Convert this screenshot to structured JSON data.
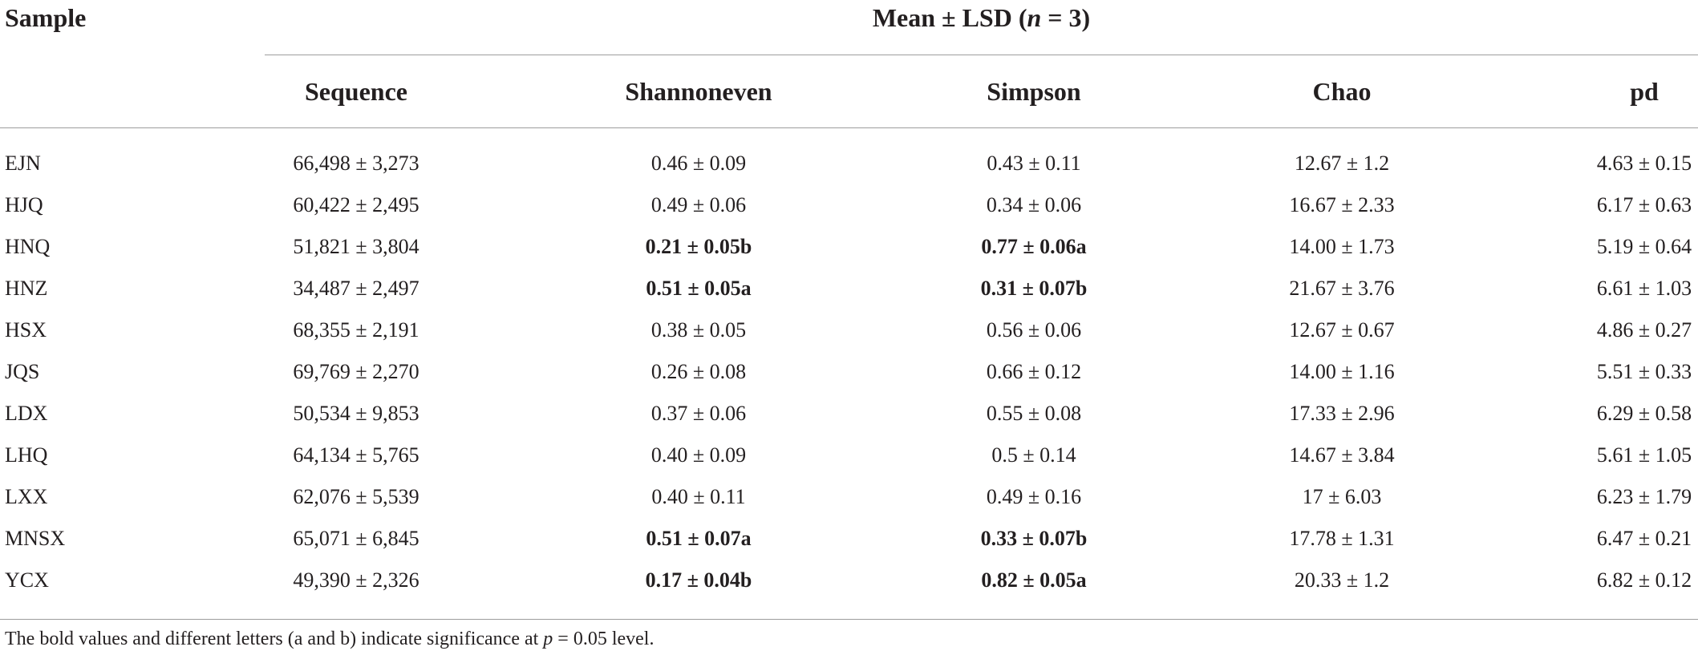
{
  "table": {
    "stub_header": "Sample",
    "group_header": {
      "prefix": "Mean ± LSD (",
      "n_symbol": "n",
      "suffix": " = 3)"
    },
    "columns": [
      "Sequence",
      "Shannoneven",
      "Simpson",
      "Chao",
      "pd"
    ],
    "rows": [
      {
        "sample": "EJN",
        "sequence": "66,498 ± 3,273",
        "shannoneven": "0.46 ± 0.09",
        "simpson": "0.43 ± 0.11",
        "chao": "12.67 ± 1.2",
        "pd": "4.63 ± 0.15",
        "bold_shannoneven": false,
        "bold_simpson": false
      },
      {
        "sample": "HJQ",
        "sequence": "60,422 ± 2,495",
        "shannoneven": "0.49 ± 0.06",
        "simpson": "0.34 ± 0.06",
        "chao": "16.67 ± 2.33",
        "pd": "6.17 ± 0.63",
        "bold_shannoneven": false,
        "bold_simpson": false
      },
      {
        "sample": "HNQ",
        "sequence": "51,821 ± 3,804",
        "shannoneven": "0.21 ± 0.05b",
        "simpson": "0.77 ± 0.06a",
        "chao": "14.00 ± 1.73",
        "pd": "5.19 ± 0.64",
        "bold_shannoneven": true,
        "bold_simpson": true
      },
      {
        "sample": "HNZ",
        "sequence": "34,487 ± 2,497",
        "shannoneven": "0.51 ± 0.05a",
        "simpson": "0.31 ± 0.07b",
        "chao": "21.67 ± 3.76",
        "pd": "6.61 ± 1.03",
        "bold_shannoneven": true,
        "bold_simpson": true
      },
      {
        "sample": "HSX",
        "sequence": "68,355 ± 2,191",
        "shannoneven": "0.38 ± 0.05",
        "simpson": "0.56 ± 0.06",
        "chao": "12.67 ± 0.67",
        "pd": "4.86 ± 0.27",
        "bold_shannoneven": false,
        "bold_simpson": false
      },
      {
        "sample": "JQS",
        "sequence": "69,769 ± 2,270",
        "shannoneven": "0.26 ± 0.08",
        "simpson": "0.66 ± 0.12",
        "chao": "14.00 ± 1.16",
        "pd": "5.51 ± 0.33",
        "bold_shannoneven": false,
        "bold_simpson": false
      },
      {
        "sample": "LDX",
        "sequence": "50,534 ± 9,853",
        "shannoneven": "0.37 ± 0.06",
        "simpson": "0.55 ± 0.08",
        "chao": "17.33 ± 2.96",
        "pd": "6.29 ± 0.58",
        "bold_shannoneven": false,
        "bold_simpson": false
      },
      {
        "sample": "LHQ",
        "sequence": "64,134 ± 5,765",
        "shannoneven": "0.40 ± 0.09",
        "simpson": "0.5 ± 0.14",
        "chao": "14.67 ± 3.84",
        "pd": "5.61 ± 1.05",
        "bold_shannoneven": false,
        "bold_simpson": false
      },
      {
        "sample": "LXX",
        "sequence": "62,076 ± 5,539",
        "shannoneven": "0.40 ± 0.11",
        "simpson": "0.49 ± 0.16",
        "chao": "17 ± 6.03",
        "pd": "6.23 ± 1.79",
        "bold_shannoneven": false,
        "bold_simpson": false
      },
      {
        "sample": "MNSX",
        "sequence": "65,071 ± 6,845",
        "shannoneven": "0.51 ± 0.07a",
        "simpson": "0.33 ± 0.07b",
        "chao": "17.78 ± 1.31",
        "pd": "6.47 ± 0.21",
        "bold_shannoneven": true,
        "bold_simpson": true
      },
      {
        "sample": "YCX",
        "sequence": "49,390 ± 2,326",
        "shannoneven": "0.17 ± 0.04b",
        "simpson": "0.82 ± 0.05a",
        "chao": "20.33 ± 1.2",
        "pd": "6.82 ± 0.12",
        "bold_shannoneven": true,
        "bold_simpson": true
      }
    ],
    "footnote": {
      "before": "The bold values and different letters (a and b) indicate significance at ",
      "p_symbol": "p",
      "after": " = 0.05 level."
    }
  }
}
